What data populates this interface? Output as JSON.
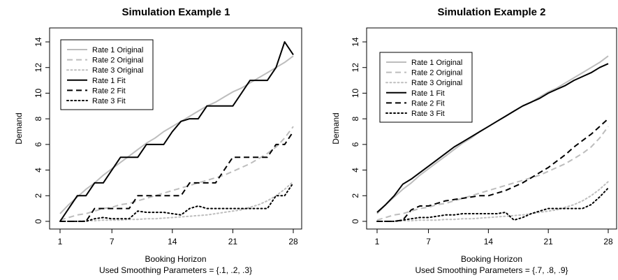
{
  "chart_data": [
    {
      "type": "line",
      "title": "Simulation Example 1",
      "xlabel": "Booking Horizon",
      "subtitle": "Used Smoothing Parameters = {.1, .2, .3}",
      "ylabel": "Demand",
      "xticks": [
        "1",
        "7",
        "14",
        "21",
        "28"
      ],
      "yticks": [
        "0",
        "2",
        "4",
        "6",
        "8",
        "10",
        "12",
        "14"
      ],
      "xlim": [
        1,
        28
      ],
      "ylim": [
        0,
        14
      ],
      "legend_position": "top-left",
      "series": [
        {
          "name": "Rate 1 Original",
          "color": "#bdbdbd",
          "dash": "solid",
          "width": 2,
          "x": [
            1,
            2,
            3,
            4,
            5,
            6,
            7,
            8,
            9,
            10,
            11,
            12,
            13,
            14,
            15,
            16,
            17,
            18,
            19,
            20,
            21,
            22,
            23,
            24,
            25,
            26,
            27,
            28
          ],
          "y": [
            0.6,
            1.3,
            1.9,
            2.5,
            3.0,
            3.6,
            4.1,
            4.6,
            5.1,
            5.6,
            6.1,
            6.5,
            7.0,
            7.4,
            7.8,
            8.2,
            8.6,
            9.0,
            9.3,
            9.7,
            10.1,
            10.4,
            10.8,
            11.2,
            11.6,
            12.0,
            12.4,
            12.9
          ]
        },
        {
          "name": "Rate 2 Original",
          "color": "#bdbdbd",
          "dash": "dashed",
          "width": 2,
          "x": [
            1,
            2,
            3,
            4,
            5,
            6,
            7,
            8,
            9,
            10,
            11,
            12,
            13,
            14,
            15,
            16,
            17,
            18,
            19,
            20,
            21,
            22,
            23,
            24,
            25,
            26,
            27,
            28
          ],
          "y": [
            0.1,
            0.3,
            0.5,
            0.6,
            0.8,
            1.0,
            1.1,
            1.3,
            1.4,
            1.6,
            1.8,
            2.0,
            2.2,
            2.4,
            2.6,
            2.8,
            3.0,
            3.2,
            3.4,
            3.6,
            3.9,
            4.2,
            4.5,
            4.9,
            5.3,
            5.8,
            6.5,
            7.4
          ]
        },
        {
          "name": "Rate 3 Original",
          "color": "#bdbdbd",
          "dash": "dotted",
          "width": 2,
          "x": [
            1,
            2,
            3,
            4,
            5,
            6,
            7,
            8,
            9,
            10,
            11,
            12,
            13,
            14,
            15,
            16,
            17,
            18,
            19,
            20,
            21,
            22,
            23,
            24,
            25,
            26,
            27,
            28
          ],
          "y": [
            0.0,
            0.0,
            0.0,
            0.05,
            0.05,
            0.1,
            0.1,
            0.1,
            0.15,
            0.15,
            0.2,
            0.2,
            0.25,
            0.3,
            0.35,
            0.4,
            0.45,
            0.5,
            0.6,
            0.7,
            0.8,
            0.9,
            1.1,
            1.3,
            1.6,
            2.0,
            2.5,
            3.1
          ]
        },
        {
          "name": "Rate 1 Fit",
          "color": "#000000",
          "dash": "solid",
          "width": 2,
          "x": [
            1,
            2,
            3,
            4,
            5,
            6,
            7,
            8,
            9,
            10,
            11,
            12,
            13,
            14,
            15,
            16,
            17,
            18,
            19,
            20,
            21,
            22,
            23,
            24,
            25,
            26,
            27,
            28
          ],
          "y": [
            0,
            1,
            2,
            2,
            3,
            3,
            4,
            5,
            5,
            5,
            6,
            6,
            6,
            7,
            7.8,
            8,
            8,
            9,
            9,
            9,
            9,
            10,
            11,
            11,
            11,
            12,
            14,
            13
          ]
        },
        {
          "name": "Rate 2 Fit",
          "color": "#000000",
          "dash": "dashed",
          "width": 2,
          "x": [
            1,
            2,
            3,
            4,
            5,
            6,
            7,
            8,
            9,
            10,
            11,
            12,
            13,
            14,
            15,
            16,
            17,
            18,
            19,
            20,
            21,
            22,
            23,
            24,
            25,
            26,
            27,
            28
          ],
          "y": [
            0,
            0,
            0,
            0,
            1,
            1,
            1,
            1,
            1,
            2,
            2,
            2,
            2,
            2,
            2,
            3,
            3,
            3,
            3,
            4,
            5,
            5,
            5,
            5,
            5,
            6,
            6,
            7
          ]
        },
        {
          "name": "Rate 3 Fit",
          "color": "#000000",
          "dash": "dotted",
          "width": 2,
          "x": [
            1,
            2,
            3,
            4,
            5,
            6,
            7,
            8,
            9,
            10,
            11,
            12,
            13,
            14,
            15,
            16,
            17,
            18,
            19,
            20,
            21,
            22,
            23,
            24,
            25,
            26,
            27,
            28
          ],
          "y": [
            0,
            0,
            0,
            0,
            0.2,
            0.3,
            0.2,
            0.2,
            0.2,
            0.8,
            0.7,
            0.7,
            0.7,
            0.6,
            0.5,
            1.0,
            1.2,
            1.0,
            1.0,
            1.0,
            1.0,
            1.0,
            1.0,
            1.0,
            1.0,
            2.0,
            2.0,
            3.0
          ]
        }
      ]
    },
    {
      "type": "line",
      "title": "Simulation Example 2",
      "xlabel": "Booking Horizon",
      "subtitle": "Used Smoothing Parameters = {.7, .8, .9}",
      "ylabel": "Demand",
      "xticks": [
        "1",
        "7",
        "14",
        "21",
        "28"
      ],
      "yticks": [
        "0",
        "2",
        "4",
        "6",
        "8",
        "10",
        "12",
        "14"
      ],
      "xlim": [
        1,
        28
      ],
      "ylim": [
        0,
        14
      ],
      "legend_position": "top-left",
      "series": [
        {
          "name": "Rate 1 Original",
          "color": "#bdbdbd",
          "dash": "solid",
          "width": 2,
          "x": [
            1,
            2,
            3,
            4,
            5,
            6,
            7,
            8,
            9,
            10,
            11,
            12,
            13,
            14,
            15,
            16,
            17,
            18,
            19,
            20,
            21,
            22,
            23,
            24,
            25,
            26,
            27,
            28
          ],
          "y": [
            0.6,
            1.3,
            1.9,
            2.5,
            3.0,
            3.6,
            4.1,
            4.6,
            5.1,
            5.6,
            6.1,
            6.5,
            7.0,
            7.4,
            7.8,
            8.2,
            8.6,
            9.0,
            9.3,
            9.7,
            10.1,
            10.4,
            10.8,
            11.2,
            11.6,
            12.0,
            12.4,
            12.9
          ]
        },
        {
          "name": "Rate 2 Original",
          "color": "#bdbdbd",
          "dash": "dashed",
          "width": 2,
          "x": [
            1,
            2,
            3,
            4,
            5,
            6,
            7,
            8,
            9,
            10,
            11,
            12,
            13,
            14,
            15,
            16,
            17,
            18,
            19,
            20,
            21,
            22,
            23,
            24,
            25,
            26,
            27,
            28
          ],
          "y": [
            0.1,
            0.3,
            0.5,
            0.6,
            0.8,
            1.0,
            1.1,
            1.3,
            1.4,
            1.6,
            1.8,
            2.0,
            2.2,
            2.4,
            2.6,
            2.8,
            3.0,
            3.2,
            3.4,
            3.6,
            3.9,
            4.2,
            4.5,
            4.9,
            5.3,
            5.8,
            6.5,
            7.4
          ]
        },
        {
          "name": "Rate 3 Original",
          "color": "#bdbdbd",
          "dash": "dotted",
          "width": 2,
          "x": [
            1,
            2,
            3,
            4,
            5,
            6,
            7,
            8,
            9,
            10,
            11,
            12,
            13,
            14,
            15,
            16,
            17,
            18,
            19,
            20,
            21,
            22,
            23,
            24,
            25,
            26,
            27,
            28
          ],
          "y": [
            0.0,
            0.0,
            0.0,
            0.05,
            0.05,
            0.1,
            0.1,
            0.1,
            0.15,
            0.15,
            0.2,
            0.2,
            0.25,
            0.3,
            0.35,
            0.4,
            0.45,
            0.5,
            0.6,
            0.7,
            0.8,
            0.9,
            1.1,
            1.3,
            1.6,
            2.0,
            2.5,
            3.1
          ]
        },
        {
          "name": "Rate 1 Fit",
          "color": "#000000",
          "dash": "solid",
          "width": 2,
          "x": [
            1,
            2,
            3,
            4,
            5,
            6,
            7,
            8,
            9,
            10,
            11,
            12,
            13,
            14,
            15,
            16,
            17,
            18,
            19,
            20,
            21,
            22,
            23,
            24,
            25,
            26,
            27,
            28
          ],
          "y": [
            0.7,
            1.3,
            2.0,
            2.9,
            3.3,
            3.8,
            4.3,
            4.8,
            5.3,
            5.8,
            6.2,
            6.6,
            7.0,
            7.4,
            7.8,
            8.2,
            8.6,
            9.0,
            9.3,
            9.6,
            10.0,
            10.3,
            10.6,
            11.0,
            11.3,
            11.6,
            12.0,
            12.3
          ]
        },
        {
          "name": "Rate 2 Fit",
          "color": "#000000",
          "dash": "dashed",
          "width": 2,
          "x": [
            1,
            2,
            3,
            4,
            5,
            6,
            7,
            8,
            9,
            10,
            11,
            12,
            13,
            14,
            15,
            16,
            17,
            18,
            19,
            20,
            21,
            22,
            23,
            24,
            25,
            26,
            27,
            28
          ],
          "y": [
            0,
            0,
            0,
            0.1,
            0.9,
            1.2,
            1.2,
            1.4,
            1.6,
            1.7,
            1.8,
            1.9,
            2.0,
            2.0,
            2.2,
            2.4,
            2.7,
            3.0,
            3.4,
            3.8,
            4.2,
            4.7,
            5.2,
            5.8,
            6.3,
            6.8,
            7.4,
            8.0
          ]
        },
        {
          "name": "Rate 3 Fit",
          "color": "#000000",
          "dash": "dotted",
          "width": 2,
          "x": [
            1,
            2,
            3,
            4,
            5,
            6,
            7,
            8,
            9,
            10,
            11,
            12,
            13,
            14,
            15,
            16,
            17,
            18,
            19,
            20,
            21,
            22,
            23,
            24,
            25,
            26,
            27,
            28
          ],
          "y": [
            0,
            0,
            0,
            0.1,
            0.2,
            0.3,
            0.3,
            0.4,
            0.5,
            0.5,
            0.6,
            0.6,
            0.6,
            0.6,
            0.6,
            0.7,
            0.1,
            0.3,
            0.6,
            0.8,
            1.0,
            1.0,
            1.0,
            1.0,
            1.0,
            1.3,
            1.9,
            2.6
          ]
        }
      ]
    }
  ]
}
